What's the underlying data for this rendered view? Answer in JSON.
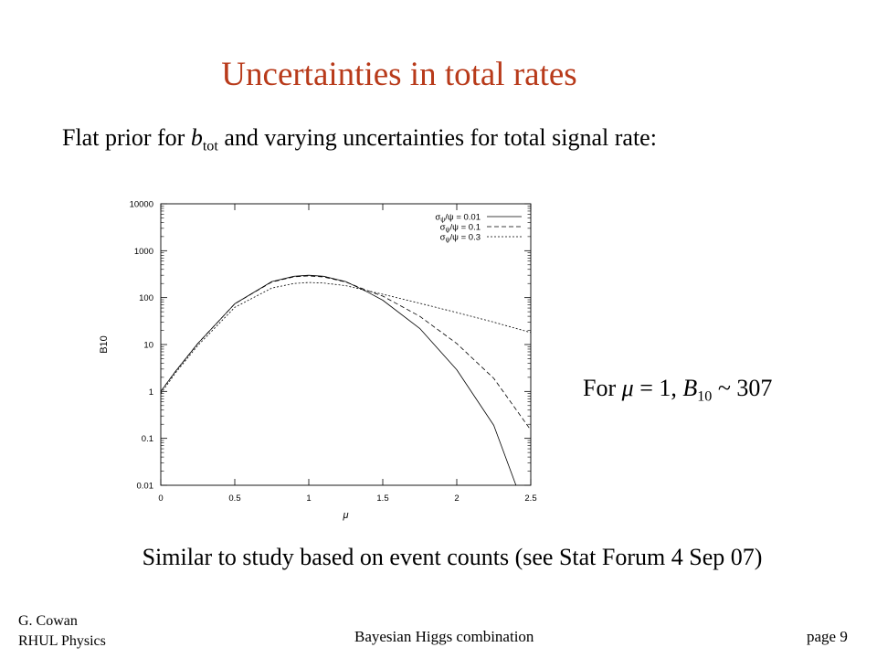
{
  "slide": {
    "title": "Uncertainties in total rates",
    "subtitle": {
      "pre": "Flat prior for ",
      "var": "b",
      "var_sub": "tot",
      "post": " and varying uncertainties for total signal rate:"
    },
    "note": {
      "pre": "For ",
      "mu": "μ",
      "mid": " = 1, ",
      "var": "B",
      "var_sub": "10",
      "post": " ~ 307"
    },
    "conclusion": "Similar to study based on event counts (see Stat Forum 4 Sep 07)",
    "footer": {
      "author": "G. Cowan",
      "affiliation": "RHUL Physics",
      "topic": "Bayesian Higgs combination",
      "page": "page 9"
    },
    "accent_color": "#b83a1a"
  },
  "chart_data": {
    "type": "line",
    "xlabel": "μ",
    "ylabel": "B10",
    "x_log": false,
    "y_log": true,
    "xlim": [
      0,
      2.5
    ],
    "ylim": [
      0.01,
      10000
    ],
    "x_ticks": [
      "0",
      "0.5",
      "1",
      "1.5",
      "2",
      "2.5"
    ],
    "y_ticks": [
      "0.01",
      "0.1",
      "1",
      "10",
      "100",
      "1000",
      "10000"
    ],
    "legend_position": "top-right",
    "grid": false,
    "series": [
      {
        "name": "σψ/ψ = 0.01",
        "name_parts": [
          "σ",
          "ψ",
          "/ψ = 0.01"
        ],
        "style": "solid",
        "x": [
          0,
          0.1,
          0.25,
          0.5,
          0.75,
          0.9,
          1.0,
          1.1,
          1.25,
          1.4,
          1.5,
          1.75,
          2.0,
          2.25,
          2.4
        ],
        "y": [
          1.0,
          2.7,
          10.5,
          74,
          220,
          285,
          300,
          285,
          220,
          130,
          88,
          22,
          2.9,
          0.19,
          0.01
        ]
      },
      {
        "name": "σψ/ψ = 0.1",
        "name_parts": [
          "σ",
          "ψ",
          "/ψ = 0.1"
        ],
        "style": "dashed",
        "x": [
          0,
          0.1,
          0.25,
          0.5,
          0.75,
          0.9,
          1.0,
          1.1,
          1.25,
          1.4,
          1.5,
          1.75,
          2.0,
          2.25,
          2.5
        ],
        "y": [
          1.0,
          2.7,
          10.5,
          74,
          215,
          278,
          290,
          275,
          215,
          140,
          108,
          40,
          10.5,
          1.9,
          0.15
        ]
      },
      {
        "name": "σψ/ψ = 0.3",
        "name_parts": [
          "σ",
          "ψ",
          "/ψ = 0.3"
        ],
        "style": "dotted",
        "x": [
          0,
          0.1,
          0.25,
          0.5,
          0.75,
          0.9,
          1.0,
          1.1,
          1.25,
          1.5,
          1.75,
          2.0,
          2.25,
          2.5
        ],
        "y": [
          0.9,
          2.5,
          9.5,
          62,
          160,
          200,
          210,
          205,
          180,
          118,
          76,
          48,
          30,
          18
        ]
      }
    ]
  }
}
